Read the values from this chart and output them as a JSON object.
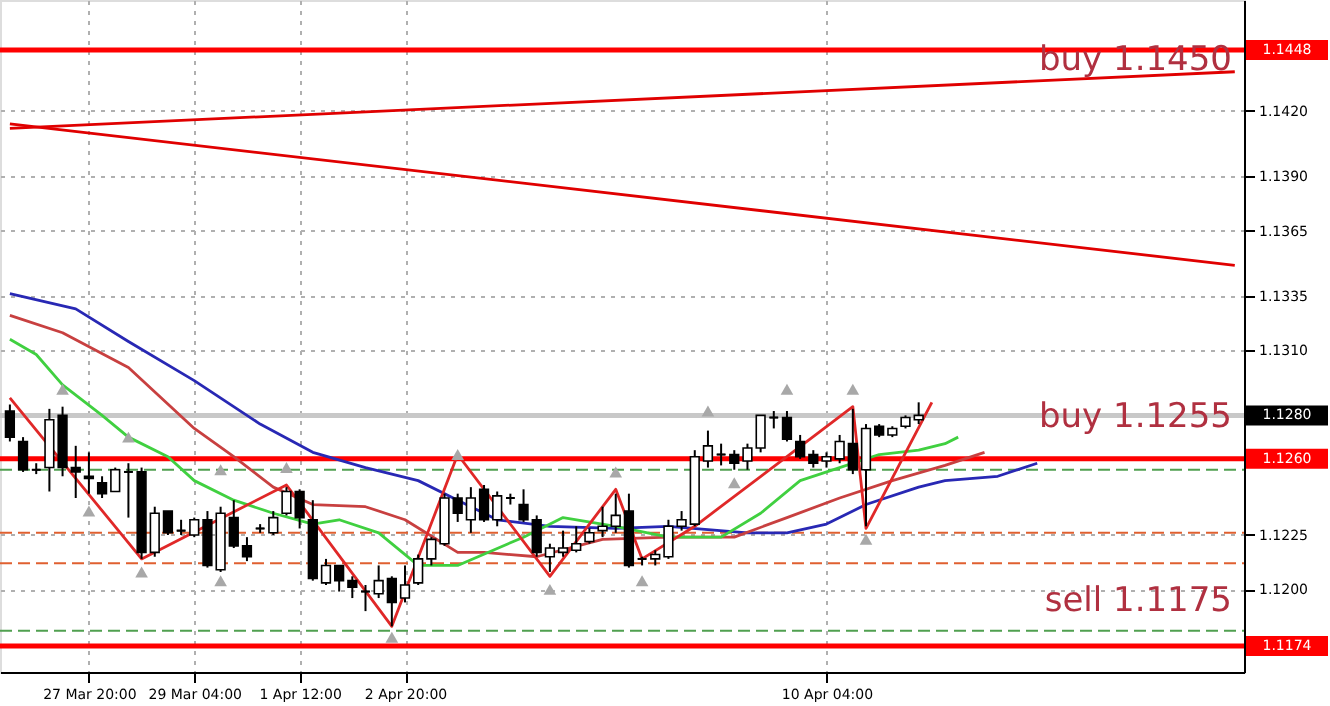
{
  "chart_data": {
    "type": "candlestick",
    "categories": [
      null,
      null,
      null,
      null,
      null,
      null,
      "27 Mar 20:00",
      null,
      null,
      null,
      null,
      null,
      null,
      null,
      "29 Mar 04:00",
      null,
      null,
      null,
      null,
      null,
      null,
      null,
      "1 Apr 12:00",
      null,
      null,
      null,
      null,
      null,
      null,
      null,
      "2 Apr 20:00",
      null,
      null,
      null,
      null,
      null,
      null,
      null,
      null,
      null,
      null,
      null,
      null,
      null,
      null,
      null,
      null,
      null,
      null,
      null,
      null,
      null,
      null,
      null,
      null,
      null,
      null,
      null,
      null,
      null,
      null,
      null,
      "10 Apr 04:00",
      null,
      null,
      null,
      null,
      null,
      null,
      null,
      null,
      null,
      null,
      null,
      null,
      null,
      null,
      null,
      null,
      null,
      null,
      null,
      null,
      null,
      null,
      null,
      null,
      null,
      null,
      null,
      null,
      null,
      null,
      null
    ],
    "ohlc": [
      [
        1.1282,
        1.1285,
        1.1268,
        1.127
      ],
      [
        1.1268,
        1.127,
        1.1254,
        1.1255
      ],
      [
        1.1255,
        1.1258,
        1.1253,
        1.1255
      ],
      [
        1.1256,
        1.1283,
        1.1245,
        1.1278
      ],
      [
        1.128,
        1.1284,
        1.1252,
        1.1256
      ],
      [
        1.1256,
        1.1266,
        1.1242,
        1.1254
      ],
      [
        1.1252,
        1.1263,
        1.1244,
        1.1251
      ],
      [
        1.1249,
        1.1252,
        1.1242,
        1.1244
      ],
      [
        1.1245,
        1.1256,
        1.1245,
        1.1255
      ],
      [
        1.1254,
        1.1258,
        1.1233,
        1.1254
      ],
      [
        1.1254,
        1.1256,
        1.1214,
        1.1217
      ],
      [
        1.1217,
        1.1238,
        1.1215,
        1.1235
      ],
      [
        1.1236,
        1.1236,
        1.1225,
        1.1226
      ],
      [
        1.1227,
        1.1232,
        1.1225,
        1.1227
      ],
      [
        1.1225,
        1.1233,
        1.1224,
        1.1232
      ],
      [
        1.1232,
        1.1236,
        1.121,
        1.1211
      ],
      [
        1.1209,
        1.1238,
        1.1208,
        1.1235
      ],
      [
        1.1233,
        1.1241,
        1.1219,
        1.122
      ],
      [
        1.122,
        1.1224,
        1.1213,
        1.1215
      ],
      [
        1.1228,
        1.123,
        1.1226,
        1.1228
      ],
      [
        1.1226,
        1.1236,
        1.1225,
        1.1233
      ],
      [
        1.1235,
        1.1247,
        1.1234,
        1.1245
      ],
      [
        1.1245,
        1.1246,
        1.1228,
        1.1233
      ],
      [
        1.1232,
        1.1241,
        1.1204,
        1.1205
      ],
      [
        1.1203,
        1.1214,
        1.1202,
        1.1211
      ],
      [
        1.1211,
        1.1211,
        1.1199,
        1.1204
      ],
      [
        1.1204,
        1.1206,
        1.1196,
        1.1201
      ],
      [
        1.1199,
        1.1202,
        1.119,
        1.1199
      ],
      [
        1.1198,
        1.1211,
        1.1196,
        1.1204
      ],
      [
        1.1205,
        1.1206,
        1.1183,
        1.1194
      ],
      [
        1.1196,
        1.1211,
        1.1194,
        1.1202
      ],
      [
        1.1203,
        1.1216,
        1.1202,
        1.1214
      ],
      [
        1.1214,
        1.1224,
        1.1211,
        1.1223
      ],
      [
        1.1221,
        1.1244,
        1.122,
        1.1242
      ],
      [
        1.1242,
        1.1244,
        1.1231,
        1.1235
      ],
      [
        1.1232,
        1.1247,
        1.1226,
        1.1242
      ],
      [
        1.1246,
        1.1248,
        1.1231,
        1.1232
      ],
      [
        1.1232,
        1.1245,
        1.1229,
        1.1243
      ],
      [
        1.1242,
        1.1244,
        1.1239,
        1.1242
      ],
      [
        1.1239,
        1.1246,
        1.1231,
        1.1232
      ],
      [
        1.1232,
        1.1234,
        1.1215,
        1.1217
      ],
      [
        1.1215,
        1.1221,
        1.1208,
        1.1219
      ],
      [
        1.1217,
        1.1227,
        1.1215,
        1.1219
      ],
      [
        1.1218,
        1.1229,
        1.1217,
        1.1221
      ],
      [
        1.1222,
        1.1228,
        1.1221,
        1.1226
      ],
      [
        1.1227,
        1.1238,
        1.1224,
        1.1229
      ],
      [
        1.1229,
        1.1244,
        1.1226,
        1.1234
      ],
      [
        1.1236,
        1.1244,
        1.121,
        1.1211
      ],
      [
        1.1214,
        1.1215,
        1.1211,
        1.1214
      ],
      [
        1.1214,
        1.1218,
        1.1211,
        1.1216
      ],
      [
        1.1215,
        1.1232,
        1.1214,
        1.1229
      ],
      [
        1.1229,
        1.1236,
        1.1227,
        1.1232
      ],
      [
        1.123,
        1.1264,
        1.1229,
        1.1261
      ],
      [
        1.1259,
        1.1273,
        1.1256,
        1.1266
      ],
      [
        1.1262,
        1.1267,
        1.1257,
        1.1262
      ],
      [
        1.1262,
        1.1264,
        1.1255,
        1.1258
      ],
      [
        1.1259,
        1.1267,
        1.1255,
        1.1265
      ],
      [
        1.1265,
        1.128,
        1.1263,
        1.128
      ],
      [
        1.1279,
        1.1282,
        1.1274,
        1.1279
      ],
      [
        1.1279,
        1.1282,
        1.1268,
        1.1269
      ],
      [
        1.1268,
        1.1271,
        1.126,
        1.1261
      ],
      [
        1.1262,
        1.1264,
        1.1256,
        1.1258
      ],
      [
        1.1259,
        1.1263,
        1.1256,
        1.1261
      ],
      [
        1.126,
        1.1271,
        1.1258,
        1.1268
      ],
      [
        1.1267,
        1.1283,
        1.1253,
        1.1255
      ],
      [
        1.1255,
        1.1276,
        1.1229,
        1.1274
      ],
      [
        1.1275,
        1.1276,
        1.127,
        1.1271
      ],
      [
        1.1271,
        1.1275,
        1.127,
        1.1274
      ],
      [
        1.1275,
        1.128,
        1.1274,
        1.1279
      ],
      [
        1.1278,
        1.1286,
        1.1276,
        1.128
      ],
      null,
      null,
      null,
      null,
      null,
      null,
      null,
      null,
      null,
      null,
      null,
      null,
      null,
      null,
      null,
      null,
      null,
      null,
      null,
      null,
      null,
      null,
      null,
      null
    ],
    "series": [
      {
        "type": "line",
        "color": "#2828b4",
        "values": [
          1.1336,
          null,
          null,
          null,
          null,
          1.1329,
          null,
          null,
          null,
          1.1314,
          null,
          null,
          null,
          null,
          1.1296,
          null,
          null,
          null,
          null,
          1.1276,
          null,
          null,
          null,
          1.1263,
          null,
          null,
          null,
          1.1256,
          null,
          null,
          null,
          1.125,
          null,
          null,
          1.1241,
          null,
          null,
          1.1232,
          null,
          null,
          null,
          1.1229,
          null,
          null,
          null,
          null,
          1.1228,
          null,
          null,
          null,
          1.1229,
          null,
          null,
          null,
          null,
          null,
          1.1226,
          null,
          null,
          1.1226,
          null,
          null,
          1.123,
          null,
          null,
          1.1239,
          null,
          null,
          null,
          1.1247,
          null,
          1.125,
          null,
          null,
          null,
          1.1252,
          null,
          null,
          1.1258,
          null,
          null,
          null,
          null,
          null,
          null,
          null,
          null,
          null,
          null,
          null,
          null,
          null,
          null,
          null
        ]
      },
      {
        "type": "line",
        "color": "#c84040",
        "values": [
          1.1326,
          null,
          null,
          null,
          1.1318,
          null,
          null,
          null,
          null,
          1.1302,
          null,
          null,
          null,
          null,
          1.1274,
          null,
          null,
          1.1261,
          null,
          null,
          1.1247,
          null,
          null,
          1.1239,
          null,
          null,
          null,
          1.1238,
          null,
          null,
          1.1232,
          null,
          null,
          null,
          1.1217,
          null,
          1.1217,
          null,
          null,
          null,
          1.1215,
          null,
          null,
          null,
          null,
          1.1223,
          null,
          null,
          null,
          null,
          1.1224,
          null,
          null,
          null,
          null,
          1.1224,
          null,
          null,
          null,
          1.1233,
          null,
          null,
          null,
          1.1242,
          null,
          null,
          null,
          1.125,
          null,
          null,
          null,
          1.1257,
          null,
          null,
          1.1263,
          null,
          null,
          null,
          null,
          null,
          null,
          null,
          null,
          null,
          null,
          null,
          null,
          null,
          null,
          null,
          null,
          null,
          null,
          null
        ]
      },
      {
        "type": "line",
        "color": "#40d040",
        "values": [
          1.1315,
          null,
          1.1308,
          null,
          1.1294,
          null,
          null,
          1.128,
          null,
          1.127,
          null,
          null,
          1.1261,
          null,
          1.125,
          null,
          null,
          1.1241,
          null,
          null,
          1.1235,
          null,
          null,
          1.123,
          null,
          1.1232,
          null,
          null,
          1.1226,
          null,
          null,
          1.1211,
          null,
          null,
          1.1211,
          null,
          null,
          null,
          null,
          1.1224,
          null,
          null,
          1.1233,
          null,
          null,
          null,
          1.1229,
          null,
          null,
          null,
          1.1224,
          null,
          null,
          null,
          1.1224,
          null,
          null,
          1.1235,
          null,
          null,
          1.125,
          null,
          null,
          1.1256,
          null,
          null,
          1.1262,
          null,
          null,
          1.1264,
          null,
          1.1267,
          1.127,
          null,
          null,
          null,
          null,
          null,
          null,
          null,
          null,
          null,
          null,
          null,
          null,
          null,
          null,
          null,
          null,
          null,
          null,
          null,
          null,
          null
        ]
      },
      {
        "type": "line",
        "color": "#e02828",
        "values": [
          1.1288,
          null,
          null,
          null,
          null,
          null,
          null,
          null,
          null,
          null,
          1.1214,
          null,
          null,
          null,
          null,
          null,
          null,
          null,
          null,
          null,
          null,
          1.1248,
          null,
          null,
          null,
          null,
          null,
          null,
          null,
          1.1183,
          null,
          null,
          null,
          null,
          1.1262,
          null,
          null,
          null,
          null,
          null,
          null,
          1.1206,
          null,
          null,
          null,
          null,
          1.1246,
          null,
          1.1214,
          null,
          null,
          null,
          1.1229,
          null,
          null,
          null,
          null,
          null,
          null,
          null,
          null,
          null,
          null,
          null,
          1.1284,
          1.1228,
          null,
          null,
          null,
          null,
          1.1286,
          null,
          null,
          null,
          null,
          null,
          null,
          null,
          null,
          null,
          null,
          null,
          null,
          null,
          null,
          null,
          null,
          null,
          null,
          null,
          null,
          null,
          null,
          null
        ]
      },
      {
        "type": "line",
        "color": "#e00000",
        "values": [
          1.1412,
          null,
          null,
          null,
          null,
          null,
          null,
          null,
          null,
          null,
          null,
          null,
          null,
          null,
          null,
          null,
          null,
          null,
          null,
          null,
          null,
          null,
          null,
          null,
          null,
          null,
          null,
          null,
          null,
          null,
          null,
          null,
          null,
          null,
          null,
          null,
          null,
          null,
          null,
          null,
          null,
          null,
          null,
          null,
          null,
          null,
          null,
          null,
          null,
          null,
          null,
          null,
          null,
          null,
          null,
          null,
          null,
          null,
          null,
          null,
          null,
          null,
          null,
          null,
          null,
          null,
          null,
          null,
          null,
          null,
          null,
          null,
          null,
          null,
          null,
          null,
          null,
          null,
          null,
          null,
          null,
          null,
          null,
          null,
          null,
          null,
          null,
          null,
          null,
          null,
          null,
          null,
          null,
          1.1438
        ]
      },
      {
        "type": "line",
        "color": "#e00000",
        "values": [
          1.1414,
          null,
          null,
          null,
          null,
          null,
          null,
          null,
          null,
          null,
          null,
          null,
          null,
          null,
          null,
          null,
          null,
          null,
          null,
          null,
          null,
          null,
          null,
          null,
          null,
          null,
          null,
          null,
          null,
          null,
          null,
          null,
          null,
          null,
          null,
          null,
          null,
          null,
          null,
          null,
          null,
          null,
          null,
          null,
          null,
          null,
          null,
          null,
          null,
          null,
          null,
          null,
          null,
          null,
          null,
          null,
          null,
          null,
          null,
          null,
          null,
          null,
          null,
          null,
          null,
          null,
          null,
          null,
          null,
          null,
          null,
          null,
          null,
          null,
          null,
          null,
          null,
          null,
          null,
          null,
          null,
          null,
          null,
          null,
          null,
          null,
          null,
          null,
          null,
          null,
          null,
          null,
          null,
          1.1349
        ]
      },
      {
        "type": "scatter",
        "color": "#a8a8a8",
        "marker": "triangle",
        "values": [
          null,
          null,
          null,
          null,
          1.1292,
          null,
          null,
          null,
          null,
          1.127,
          null,
          null,
          null,
          null,
          null,
          null,
          1.1255,
          null,
          null,
          null,
          null,
          1.1256,
          null,
          null,
          null,
          null,
          null,
          null,
          null,
          null,
          null,
          null,
          null,
          null,
          1.1262,
          null,
          null,
          null,
          null,
          null,
          null,
          null,
          null,
          null,
          null,
          null,
          1.1254,
          null,
          null,
          null,
          null,
          null,
          null,
          1.1282,
          null,
          null,
          null,
          null,
          null,
          1.1292,
          null,
          null,
          null,
          null,
          1.1292,
          null,
          null,
          null,
          null,
          null,
          null,
          null,
          null,
          null,
          null,
          null,
          null,
          null,
          null,
          null,
          null,
          null,
          null,
          null,
          null,
          null,
          null,
          null,
          null,
          null,
          null,
          null,
          null,
          null
        ]
      },
      {
        "type": "scatter",
        "color": "#a8a8a8",
        "marker": "triangle",
        "values": [
          null,
          null,
          null,
          null,
          null,
          null,
          1.1236,
          null,
          null,
          null,
          1.1208,
          null,
          null,
          null,
          null,
          null,
          1.1204,
          null,
          null,
          null,
          null,
          null,
          null,
          null,
          null,
          null,
          null,
          null,
          null,
          1.1178,
          null,
          null,
          null,
          null,
          null,
          null,
          null,
          null,
          null,
          null,
          null,
          1.12,
          null,
          null,
          null,
          null,
          null,
          null,
          1.1204,
          null,
          null,
          null,
          null,
          null,
          null,
          1.1249,
          null,
          null,
          null,
          null,
          null,
          null,
          null,
          null,
          null,
          1.1223,
          null,
          null,
          null,
          null,
          null,
          null,
          null,
          null,
          null,
          null,
          null,
          null,
          null,
          null,
          null,
          null,
          null,
          null,
          null,
          null,
          null,
          null,
          null,
          null,
          null,
          null,
          null,
          null
        ]
      }
    ],
    "ylim": [
      1.1162,
      1.1471
    ],
    "yticks": [
      {
        "value": 1.142,
        "label": "1.1420"
      },
      {
        "value": 1.139,
        "label": "1.1390"
      },
      1.1365,
      1.1335,
      {
        "value": 1.131,
        "label": "1.1310"
      },
      1.1225,
      {
        "value": 1.12,
        "label": "1.1200"
      }
    ],
    "ref_lines": [
      {
        "axis": "y",
        "value": 1.1448,
        "label": "1.1448",
        "color": "#ff0000"
      },
      {
        "axis": "y",
        "value": 1.128,
        "label": "1.1280",
        "color": "#c8c8c8"
      },
      {
        "axis": "y",
        "value": 1.126,
        "label": "1.1260",
        "color": "#ff0000"
      },
      {
        "axis": "y",
        "value": 1.1174,
        "label": "1.1174",
        "color": "#ff0000"
      },
      {
        "axis": "y",
        "value": 1.1255,
        "color": "#50a050",
        "line_style": "dashed"
      },
      {
        "axis": "y",
        "value": 1.1181,
        "color": "#50a050",
        "line_style": "dashed"
      },
      {
        "axis": "y",
        "value": 1.1226,
        "color": "#e06030",
        "line_style": "dashed"
      },
      {
        "axis": "y",
        "value": 1.1212,
        "color": "#e06030",
        "line_style": "dashed"
      }
    ],
    "annotations": [
      "buy 1.1450",
      "buy 1.1255",
      "sell 1.1175"
    ],
    "grid": true
  }
}
